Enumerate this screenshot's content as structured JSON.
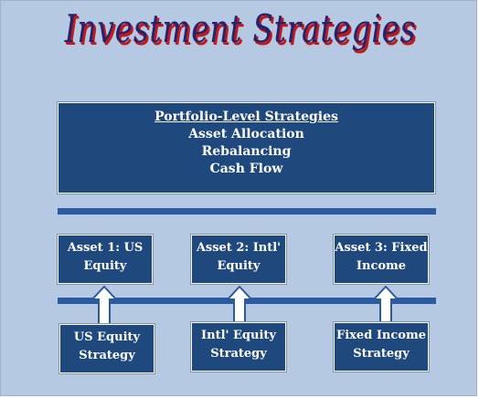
{
  "title": "Investment Strategies",
  "portfolio": {
    "heading": "Portfolio-Level Strategies",
    "items": [
      "Asset Allocation",
      "Rebalancing",
      "Cash Flow"
    ]
  },
  "assets": [
    {
      "line1": "Asset 1: US",
      "line2": "Equity"
    },
    {
      "line1": "Asset 2: Intl'",
      "line2": "Equity"
    },
    {
      "line1": "Asset 3: Fixed",
      "line2": "Income"
    }
  ],
  "strategies": [
    {
      "line1": "US Equity",
      "line2": "Strategy"
    },
    {
      "line1": "Intl' Equity",
      "line2": "Strategy"
    },
    {
      "line1": "Fixed Income",
      "line2": "Strategy"
    }
  ],
  "colors": {
    "background": "#b6c9e3",
    "box": "#1f497d",
    "bar": "#2c5aa0",
    "title": "#24246e",
    "title_shadow": "#c21a1a"
  }
}
